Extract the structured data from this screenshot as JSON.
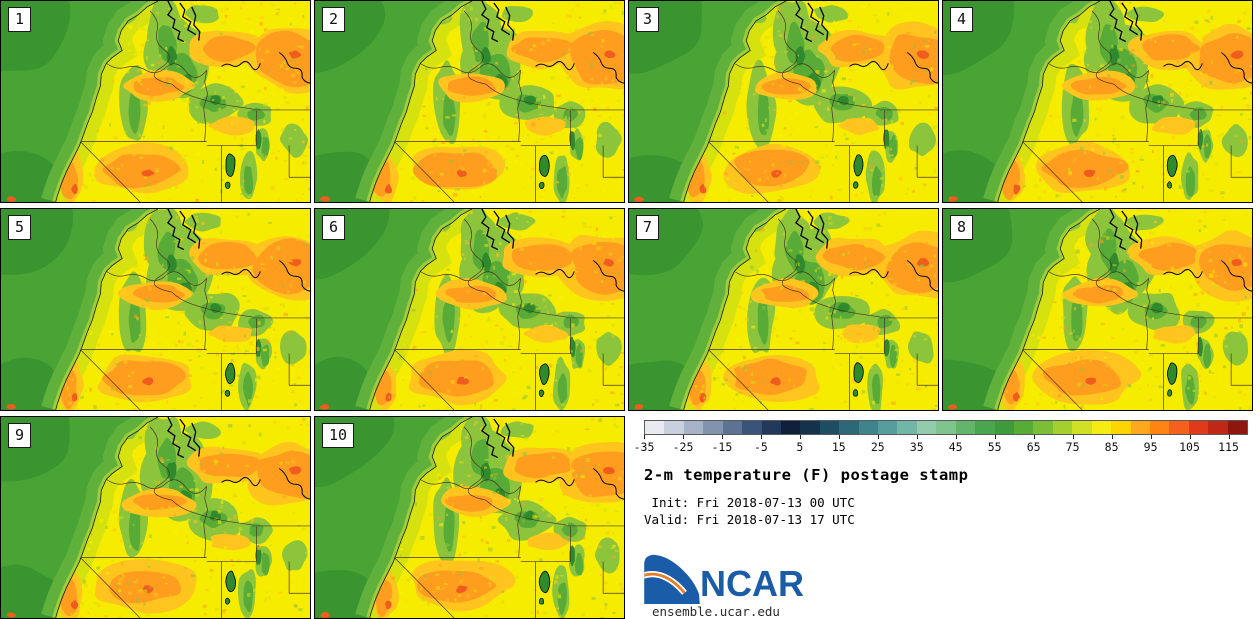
{
  "panels": [
    {
      "label": "1"
    },
    {
      "label": "2"
    },
    {
      "label": "3"
    },
    {
      "label": "4"
    },
    {
      "label": "5"
    },
    {
      "label": "6"
    },
    {
      "label": "7"
    },
    {
      "label": "8"
    },
    {
      "label": "9"
    },
    {
      "label": "10"
    }
  ],
  "legend": {
    "title": "2-m temperature (F) postage stamp",
    "init_line": " Init: Fri 2018-07-13 00 UTC",
    "valid_line": "Valid: Fri 2018-07-13 17 UTC",
    "ticks": [
      "-35",
      "-25",
      "-15",
      "-5",
      "5",
      "15",
      "25",
      "35",
      "45",
      "55",
      "65",
      "75",
      "85",
      "95",
      "105",
      "115"
    ],
    "scale_min": -35,
    "scale_max": 120,
    "units": "F",
    "colors": [
      "#e9eaf1",
      "#c9d0dd",
      "#a6b2c6",
      "#8193ad",
      "#5c7393",
      "#3a5378",
      "#22395c",
      "#101f3a",
      "#14324a",
      "#1e4d62",
      "#2d6878",
      "#3f838c",
      "#569e9b",
      "#72b7a5",
      "#92ccac",
      "#7fc48e",
      "#63b56b",
      "#4aa64e",
      "#3d9b39",
      "#58ac36",
      "#7cbe35",
      "#a4d02f",
      "#d0e025",
      "#f6ec13",
      "#ffd400",
      "#ffa81e",
      "#ff8412",
      "#f4611e",
      "#e03a1b",
      "#bf2717",
      "#8f150f"
    ],
    "logo_text": "NCAR",
    "logo_color": "#1a5ca8",
    "logo_arc_color": "#e87d2a",
    "url": "ensemble.ucar.edu"
  },
  "map_palette": {
    "land_yellow": "#f6ec00",
    "gold": "#ffc41e",
    "orange": "#ff9d1f",
    "red_hot": "#ef5c1e",
    "yellow_green": "#cfe012",
    "green_light": "#8cc43c",
    "green_mid": "#57ab36",
    "green_dark": "#2e8a2c",
    "ocean_green": "#4aa335",
    "ocean_dark": "#3a9530",
    "ocean_band": "#5fb13c",
    "coast_sliver": "#9fcd38",
    "border_line": "#4a3520"
  }
}
